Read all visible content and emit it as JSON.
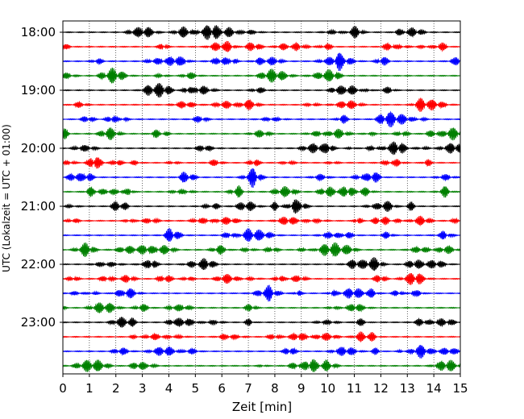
{
  "chart_data": {
    "type": "line",
    "title": "",
    "xlabel": "Zeit  [min]",
    "ylabel": "UTC (Lokalzeit = UTC + 01:00)",
    "xlim": [
      0,
      15
    ],
    "x_ticks": [
      "0",
      "1",
      "2",
      "3",
      "4",
      "5",
      "6",
      "7",
      "8",
      "9",
      "10",
      "11",
      "12",
      "13",
      "14",
      "15"
    ],
    "y_tick_labels": [
      "18:00",
      "19:00",
      "20:00",
      "21:00",
      "22:00",
      "23:00"
    ],
    "grid": "vertical dotted lines at each minute",
    "trace_colors": [
      "#000000",
      "#ff0000",
      "#0000ff",
      "#008000"
    ],
    "series": [
      {
        "start": "18:00",
        "color": "#000000"
      },
      {
        "start": "18:15",
        "color": "#ff0000"
      },
      {
        "start": "18:30",
        "color": "#0000ff"
      },
      {
        "start": "18:45",
        "color": "#008000"
      },
      {
        "start": "19:00",
        "color": "#000000"
      },
      {
        "start": "19:15",
        "color": "#ff0000"
      },
      {
        "start": "19:30",
        "color": "#0000ff"
      },
      {
        "start": "19:45",
        "color": "#008000"
      },
      {
        "start": "20:00",
        "color": "#000000"
      },
      {
        "start": "20:15",
        "color": "#ff0000"
      },
      {
        "start": "20:30",
        "color": "#0000ff"
      },
      {
        "start": "20:45",
        "color": "#008000"
      },
      {
        "start": "21:00",
        "color": "#000000"
      },
      {
        "start": "21:15",
        "color": "#ff0000"
      },
      {
        "start": "21:30",
        "color": "#0000ff"
      },
      {
        "start": "21:45",
        "color": "#008000"
      },
      {
        "start": "22:00",
        "color": "#000000"
      },
      {
        "start": "22:15",
        "color": "#ff0000"
      },
      {
        "start": "22:30",
        "color": "#0000ff"
      },
      {
        "start": "22:45",
        "color": "#008000"
      },
      {
        "start": "23:00",
        "color": "#000000"
      },
      {
        "start": "23:15",
        "color": "#ff0000"
      },
      {
        "start": "23:30",
        "color": "#0000ff"
      },
      {
        "start": "23:45",
        "color": "#008000"
      }
    ]
  }
}
